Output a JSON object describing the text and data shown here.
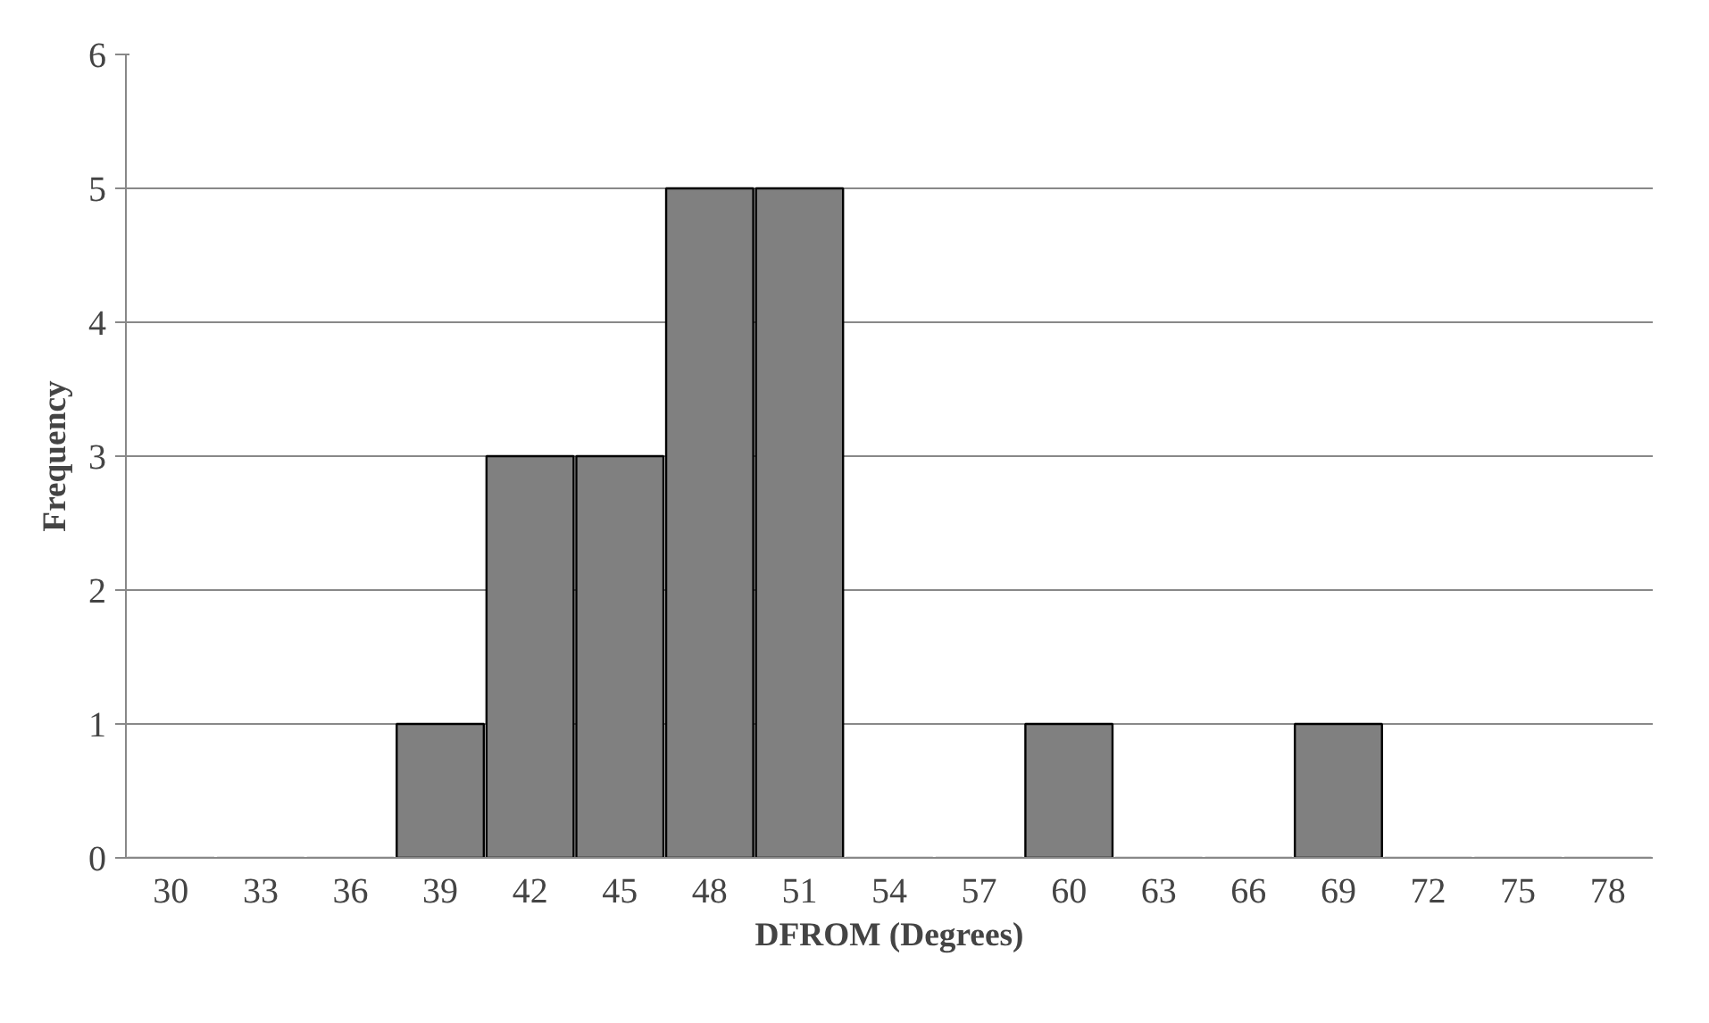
{
  "chart_data": {
    "type": "bar",
    "xlabel": "DFROM (Degrees)",
    "ylabel": "Frequency",
    "categories": [
      "30",
      "33",
      "36",
      "39",
      "42",
      "45",
      "48",
      "51",
      "54",
      "57",
      "60",
      "63",
      "66",
      "69",
      "72",
      "75",
      "78"
    ],
    "values": [
      0,
      0,
      0,
      1,
      3,
      3,
      5,
      5,
      0,
      0,
      1,
      0,
      0,
      1,
      0,
      0,
      0
    ],
    "color": "#808080",
    "ylim": [
      0,
      6
    ],
    "yticks": [
      0,
      1,
      2,
      3,
      4,
      5,
      6
    ],
    "grid": "y"
  }
}
